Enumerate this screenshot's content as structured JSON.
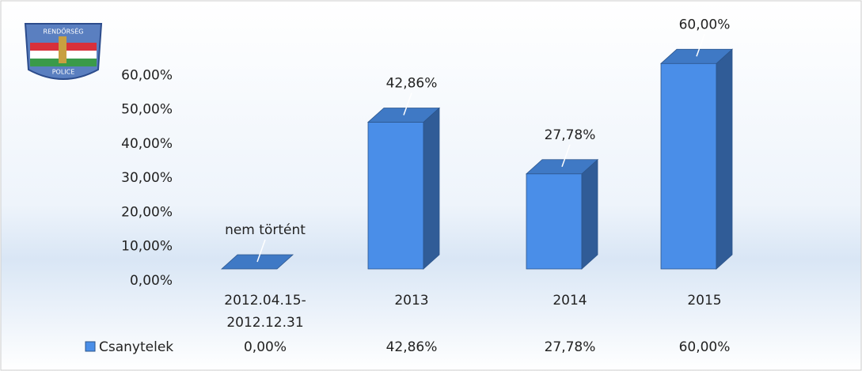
{
  "logo": {
    "top": "RENDŐRSÉG",
    "bottom": "POLICE"
  },
  "chart_data": {
    "type": "bar3d",
    "categories": [
      "2012.04.15-2012.12.31",
      "2013",
      "2014",
      "2015"
    ],
    "series": [
      {
        "name": "Csanytelek",
        "color": "#4a8ee8",
        "values": [
          0,
          42.86,
          27.78,
          60
        ],
        "value_labels": [
          "nem történt",
          "42,86%",
          "27,78%",
          "60,00%"
        ],
        "table_labels": [
          "0,00%",
          "42,86%",
          "27,78%",
          "60,00%"
        ]
      }
    ],
    "ylim": [
      0,
      70
    ],
    "yticks": [
      {
        "value": 0,
        "label": "0,00%"
      },
      {
        "value": 10,
        "label": "10,00%"
      },
      {
        "value": 20,
        "label": "20,00%"
      },
      {
        "value": 30,
        "label": "30,00%"
      },
      {
        "value": 40,
        "label": "40,00%"
      },
      {
        "value": 50,
        "label": "50,00%"
      },
      {
        "value": 60,
        "label": "60,00%"
      }
    ],
    "grid": false
  }
}
